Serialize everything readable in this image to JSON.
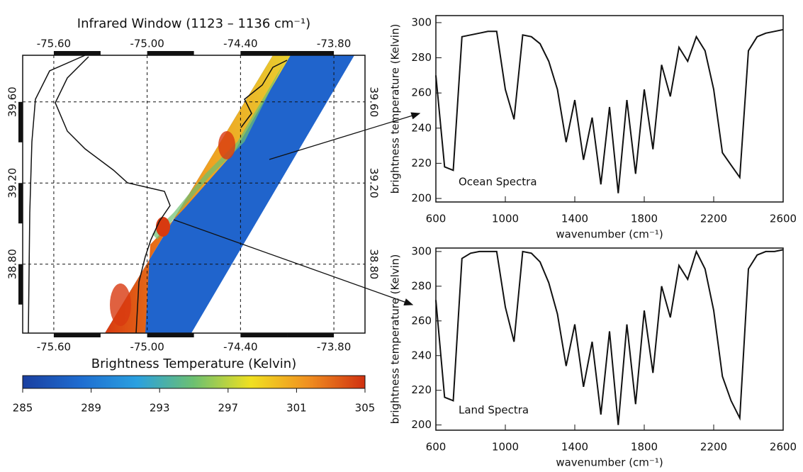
{
  "chart_data": [
    {
      "type": "map",
      "title": "Infrared Window (1123 – 1136 cm⁻¹)",
      "xlim": [
        -75.8,
        -73.6
      ],
      "ylim": [
        38.46,
        39.83
      ],
      "xticks": [
        {
          "value": -75.6,
          "label": "-75.60"
        },
        {
          "value": -75.0,
          "label": "-75.00"
        },
        {
          "value": -74.4,
          "label": "-74.40"
        },
        {
          "value": -73.8,
          "label": "-73.80"
        }
      ],
      "yticks": [
        {
          "value": 38.8,
          "label": "38.80"
        },
        {
          "value": 39.2,
          "label": "39.20"
        },
        {
          "value": 39.6,
          "label": "39.60"
        }
      ],
      "grid": true,
      "colorbar": {
        "label": "Brightness Temperature (Kelvin)",
        "range": [
          285,
          305
        ],
        "ticks": [
          285,
          289,
          293,
          297,
          301,
          305
        ],
        "colors": [
          "#1a3fa0",
          "#1e6cd0",
          "#2aa0e0",
          "#6cc070",
          "#f0e020",
          "#f09020",
          "#d03010"
        ]
      }
    },
    {
      "type": "line",
      "annotation": "Ocean Spectra",
      "xlabel": "wavenumber (cm⁻¹)",
      "ylabel": "brightness temperature (Kelvin)",
      "xlim": [
        600,
        2600
      ],
      "ylim": [
        198,
        304
      ],
      "xticks": [
        600,
        1000,
        1400,
        1800,
        2200,
        2600
      ],
      "yticks": [
        200,
        220,
        240,
        260,
        280,
        300
      ],
      "color": "#111111",
      "x": [
        600,
        650,
        700,
        750,
        800,
        850,
        900,
        950,
        1000,
        1050,
        1100,
        1150,
        1200,
        1250,
        1300,
        1350,
        1400,
        1450,
        1500,
        1550,
        1600,
        1650,
        1700,
        1750,
        1800,
        1850,
        1900,
        1950,
        2000,
        2050,
        2100,
        2150,
        2200,
        2250,
        2300,
        2350,
        2400,
        2450,
        2500,
        2550,
        2600
      ],
      "values": [
        270,
        218,
        216,
        292,
        293,
        294,
        295,
        295,
        262,
        245,
        293,
        292,
        288,
        278,
        262,
        232,
        256,
        222,
        246,
        208,
        252,
        203,
        256,
        214,
        262,
        228,
        276,
        258,
        286,
        278,
        292,
        284,
        262,
        226,
        219,
        212,
        284,
        292,
        294,
        295,
        296
      ]
    },
    {
      "type": "line",
      "annotation": "Land Spectra",
      "xlabel": "wavenumber (cm⁻¹)",
      "ylabel": "brightness temperature (Kelvin)",
      "xlim": [
        600,
        2600
      ],
      "ylim": [
        197,
        302
      ],
      "xticks": [
        600,
        1000,
        1400,
        1800,
        2200,
        2600
      ],
      "yticks": [
        200,
        220,
        240,
        260,
        280,
        300
      ],
      "color": "#111111",
      "x": [
        600,
        650,
        700,
        750,
        800,
        850,
        900,
        950,
        1000,
        1050,
        1100,
        1150,
        1200,
        1250,
        1300,
        1350,
        1400,
        1450,
        1500,
        1550,
        1600,
        1650,
        1700,
        1750,
        1800,
        1850,
        1900,
        1950,
        2000,
        2050,
        2100,
        2150,
        2200,
        2250,
        2300,
        2350,
        2400,
        2450,
        2500,
        2550,
        2600
      ],
      "values": [
        272,
        216,
        214,
        296,
        299,
        300,
        300,
        300,
        268,
        248,
        300,
        299,
        294,
        282,
        264,
        234,
        258,
        222,
        248,
        206,
        254,
        200,
        258,
        212,
        266,
        230,
        280,
        262,
        292,
        284,
        300,
        290,
        266,
        228,
        214,
        204,
        290,
        298,
        300,
        300,
        301
      ]
    }
  ]
}
